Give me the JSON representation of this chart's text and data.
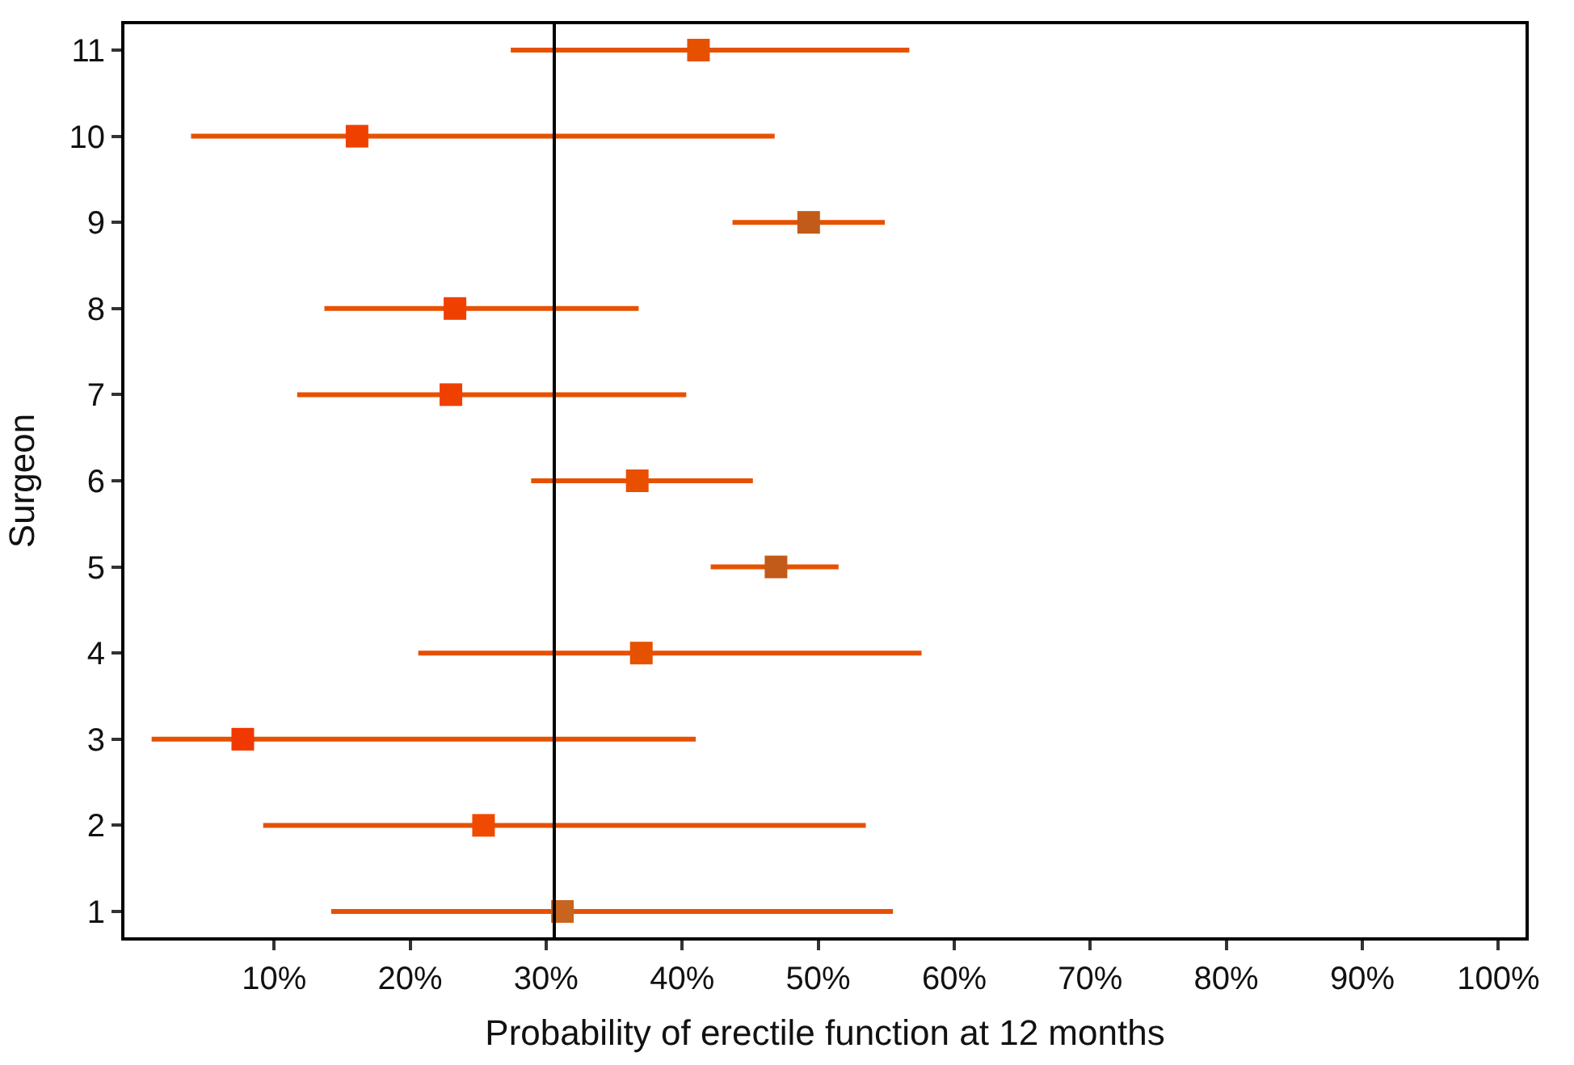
{
  "chart_data": {
    "type": "scatter",
    "xlabel": "Probability of erectile function at 12 months",
    "ylabel": "Surgeon",
    "x": [
      41.2,
      16.1,
      49.3,
      23.3,
      23.0,
      36.7,
      46.9,
      37.0,
      7.7,
      25.4,
      31.2
    ],
    "values": [
      11,
      10,
      9,
      8,
      7,
      6,
      5,
      4,
      3,
      2,
      1
    ],
    "xerrors": [
      [
        27.4,
        56.7
      ],
      [
        3.9,
        46.8
      ],
      [
        43.7,
        54.9
      ],
      [
        13.7,
        36.8
      ],
      [
        11.7,
        40.3
      ],
      [
        28.9,
        45.2
      ],
      [
        42.1,
        51.5
      ],
      [
        20.6,
        57.6
      ],
      [
        1.0,
        41.0
      ],
      [
        9.2,
        53.5
      ],
      [
        14.2,
        55.5
      ]
    ],
    "colors": [
      "#e65100",
      "#f04000",
      "#c25a1a",
      "#f04000",
      "#f04000",
      "#e85000",
      "#c25a1a",
      "#e65100",
      "#f03800",
      "#f04a00",
      "#c8641e"
    ],
    "xlim": [
      -1,
      102
    ],
    "xticks": [
      {
        "value": 10,
        "label": "10%"
      },
      {
        "value": 20,
        "label": "20%"
      },
      {
        "value": 30,
        "label": "30%"
      },
      {
        "value": 40,
        "label": "40%"
      },
      {
        "value": 50,
        "label": "50%"
      },
      {
        "value": 60,
        "label": "60%"
      },
      {
        "value": 70,
        "label": "70%"
      },
      {
        "value": 80,
        "label": "80%"
      },
      {
        "value": 90,
        "label": "90%"
      },
      {
        "value": 100,
        "label": "100%"
      }
    ],
    "ylim": [
      0.7,
      11.3
    ],
    "yticks": [
      1,
      2,
      3,
      4,
      5,
      6,
      7,
      8,
      9,
      10,
      11
    ],
    "ref_lines": [
      {
        "axis": "x",
        "value": 30.6,
        "color": "#000000"
      }
    ],
    "marker": "square"
  }
}
